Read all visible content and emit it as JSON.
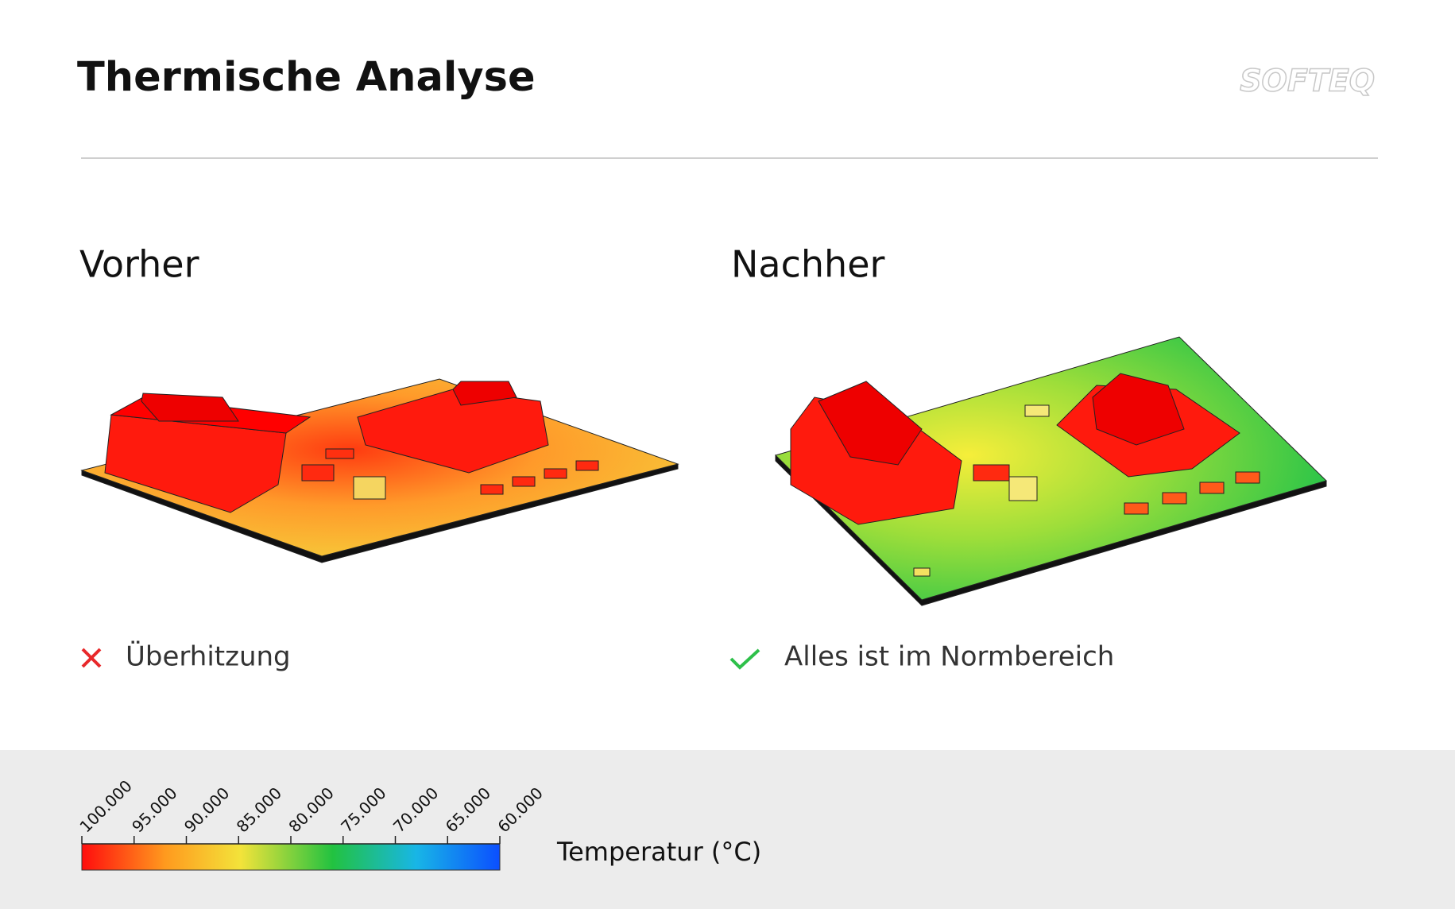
{
  "header": {
    "title": "Thermische Analyse",
    "logo": "SOFTEQ"
  },
  "panels": [
    {
      "title": "Vorher",
      "status": "Überhitzung"
    },
    {
      "title": "Nachher",
      "status": "Alles ist im Normbereich"
    }
  ],
  "legend": {
    "label": "Temperatur (°C)",
    "ticks": [
      {
        "value": 100,
        "label": "100.000"
      },
      {
        "value": 95,
        "label": "95.000"
      },
      {
        "value": 90,
        "label": "90.000"
      },
      {
        "value": 85,
        "label": "85.000"
      },
      {
        "value": 80,
        "label": "80.000"
      },
      {
        "value": 75,
        "label": "75.000"
      },
      {
        "value": 70,
        "label": "70.000"
      },
      {
        "value": 65,
        "label": "65.000"
      },
      {
        "value": 60,
        "label": "60.000"
      }
    ]
  }
}
